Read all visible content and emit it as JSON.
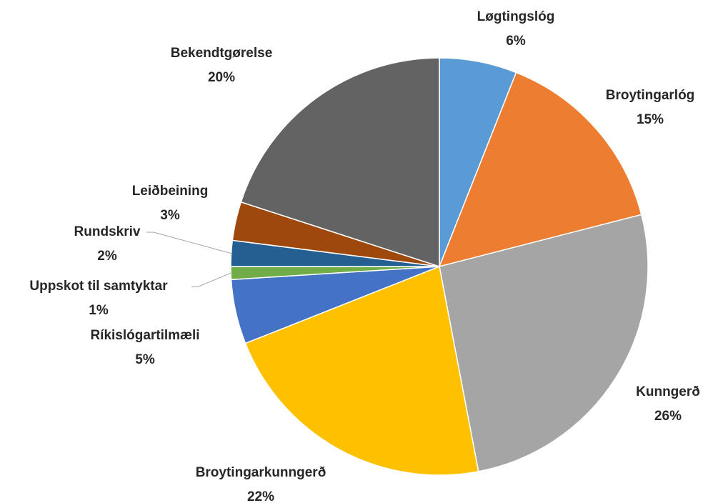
{
  "chart_data": {
    "type": "pie",
    "categories": [
      "Løgtingslóg",
      "Broytingarlóg",
      "Kunngerð",
      "Broytingarkunngerð",
      "Ríkislógartilmæli",
      "Uppskot til samtyktar",
      "Rundskriv",
      "Leiðbeining",
      "Bekendtgørelse"
    ],
    "values": [
      6,
      15,
      26,
      22,
      5,
      1,
      2,
      3,
      20
    ],
    "value_labels": [
      "6%",
      "15%",
      "26%",
      "22%",
      "5%",
      "1%",
      "2%",
      "3%",
      "20%"
    ],
    "colors": [
      "#5b9bd5",
      "#ed7d31",
      "#a5a5a5",
      "#ffc000",
      "#4472c4",
      "#70ad47",
      "#255e91",
      "#9e480e",
      "#636363"
    ]
  }
}
